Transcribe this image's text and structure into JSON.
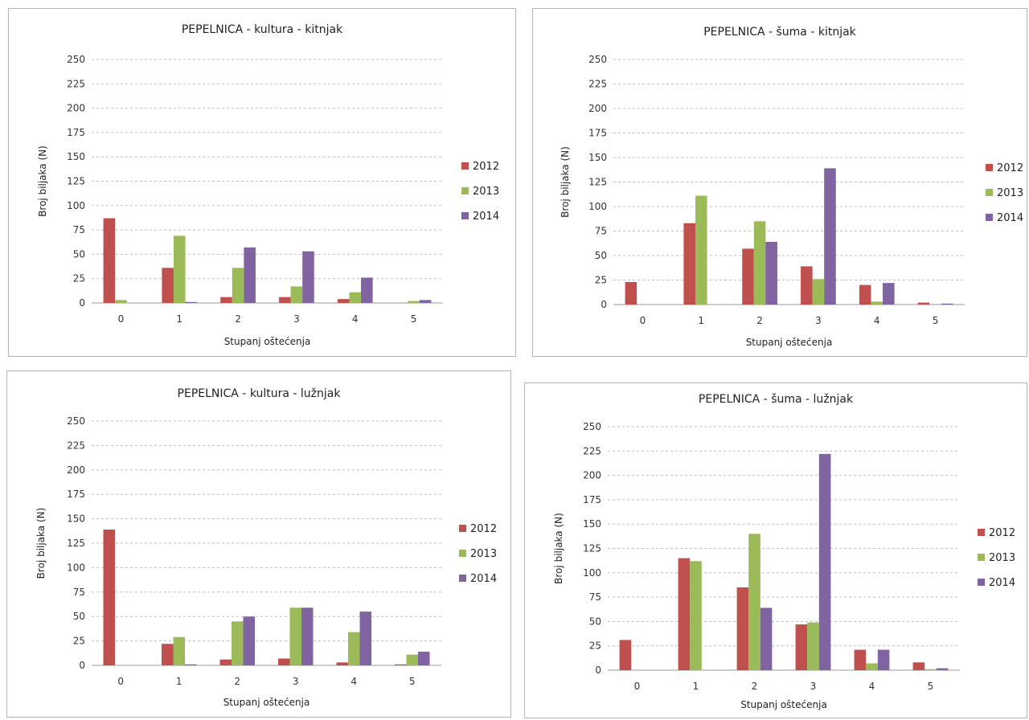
{
  "chart_data": [
    {
      "type": "bar",
      "title": "PEPELNICA - kultura - kitnjak",
      "xlabel": "Stupanj oštećenja",
      "ylabel": "Broj biljaka (N)",
      "categories": [
        "0",
        "1",
        "2",
        "3",
        "4",
        "5"
      ],
      "yticks": [
        "0",
        "25",
        "50",
        "75",
        "100",
        "125",
        "150",
        "175",
        "200",
        "225",
        "250"
      ],
      "ylim": [
        0,
        250
      ],
      "grid": true,
      "legend_position": "right",
      "series": [
        {
          "name": "2012",
          "color": "#c0504d",
          "values": [
            87,
            36,
            6,
            6,
            4,
            0
          ]
        },
        {
          "name": "2013",
          "color": "#9bbb59",
          "values": [
            3,
            69,
            36,
            17,
            11,
            2
          ]
        },
        {
          "name": "2014",
          "color": "#8064a2",
          "values": [
            0,
            1,
            57,
            53,
            26,
            3
          ]
        }
      ]
    },
    {
      "type": "bar",
      "title": "PEPELNICA - šuma - kitnjak",
      "xlabel": "Stupanj oštećenja",
      "ylabel": "Broj biljaka (N)",
      "categories": [
        "0",
        "1",
        "2",
        "3",
        "4",
        "5"
      ],
      "yticks": [
        "0",
        "25",
        "50",
        "75",
        "100",
        "125",
        "150",
        "175",
        "200",
        "225",
        "250"
      ],
      "ylim": [
        0,
        250
      ],
      "grid": true,
      "legend_position": "right",
      "series": [
        {
          "name": "2012",
          "color": "#c0504d",
          "values": [
            23,
            83,
            57,
            39,
            20,
            2
          ]
        },
        {
          "name": "2013",
          "color": "#9bbb59",
          "values": [
            0,
            111,
            85,
            26,
            3,
            0
          ]
        },
        {
          "name": "2014",
          "color": "#8064a2",
          "values": [
            0,
            0,
            64,
            139,
            22,
            1
          ]
        }
      ]
    },
    {
      "type": "bar",
      "title": "PEPELNICA - kultura - lužnjak",
      "xlabel": "Stupanj oštećenja",
      "ylabel": "Broj biljaka (N)",
      "categories": [
        "0",
        "1",
        "2",
        "3",
        "4",
        "5"
      ],
      "yticks": [
        "0",
        "25",
        "50",
        "75",
        "100",
        "125",
        "150",
        "175",
        "200",
        "225",
        "250"
      ],
      "ylim": [
        0,
        250
      ],
      "grid": true,
      "legend_position": "right",
      "series": [
        {
          "name": "2012",
          "color": "#c0504d",
          "values": [
            139,
            22,
            6,
            7,
            3,
            1
          ]
        },
        {
          "name": "2013",
          "color": "#9bbb59",
          "values": [
            0,
            29,
            45,
            59,
            34,
            11
          ]
        },
        {
          "name": "2014",
          "color": "#8064a2",
          "values": [
            0,
            1,
            50,
            59,
            55,
            14
          ]
        }
      ]
    },
    {
      "type": "bar",
      "title": "PEPELNICA - šuma - lužnjak",
      "xlabel": "Stupanj oštećenja",
      "ylabel": "Broj biljaka (N)",
      "categories": [
        "0",
        "1",
        "2",
        "3",
        "4",
        "5"
      ],
      "yticks": [
        "0",
        "25",
        "50",
        "75",
        "100",
        "125",
        "150",
        "175",
        "200",
        "225",
        "250"
      ],
      "ylim": [
        0,
        250
      ],
      "grid": true,
      "legend_position": "right",
      "series": [
        {
          "name": "2012",
          "color": "#c0504d",
          "values": [
            31,
            115,
            85,
            47,
            21,
            8
          ]
        },
        {
          "name": "2013",
          "color": "#9bbb59",
          "values": [
            0,
            112,
            140,
            49,
            7,
            1
          ]
        },
        {
          "name": "2014",
          "color": "#8064a2",
          "values": [
            0,
            0,
            64,
            222,
            21,
            2
          ]
        }
      ]
    }
  ]
}
